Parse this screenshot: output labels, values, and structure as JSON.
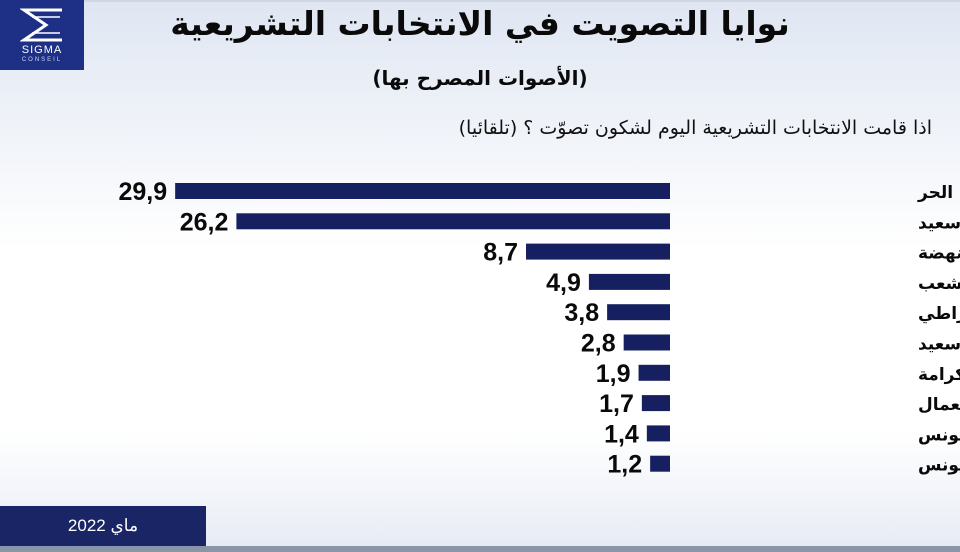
{
  "logo": {
    "name": "SIGMA",
    "sub": "CONSEIL"
  },
  "title": "نوايا التصويت في الانتخابات التشريعية",
  "subtitle": "(الأصوات المصرح بها)",
  "question": "اذا قامت الانتخابات التشريعية اليوم لشكون تصوّت ؟ (تلقائيا)",
  "footer_date": "ماي 2022",
  "colors": {
    "bar": "#162060",
    "brand": "#1e2f86"
  },
  "chart_data": {
    "type": "bar",
    "orientation": "horizontal",
    "categories": [
      "الحزب الدستوري الحر",
      "حزب قيس سعيد",
      "النهضة",
      "حركة الشعب",
      "التيار الديمقراطي",
      "حزب صافي سعيد",
      "إئتلاف الكرامة",
      "حزب العمال",
      "تحيا تونس",
      "حزب قلب تونس"
    ],
    "values": [
      29.9,
      26.2,
      8.7,
      4.9,
      3.8,
      2.8,
      1.9,
      1.7,
      1.4,
      1.2
    ],
    "value_labels": [
      "29,9",
      "26,2",
      "8,7",
      "4,9",
      "3,8",
      "2,8",
      "1,9",
      "1,7",
      "1,4",
      "1,2"
    ],
    "bar_direction": "right-to-left",
    "grid": false,
    "legend": "none"
  }
}
